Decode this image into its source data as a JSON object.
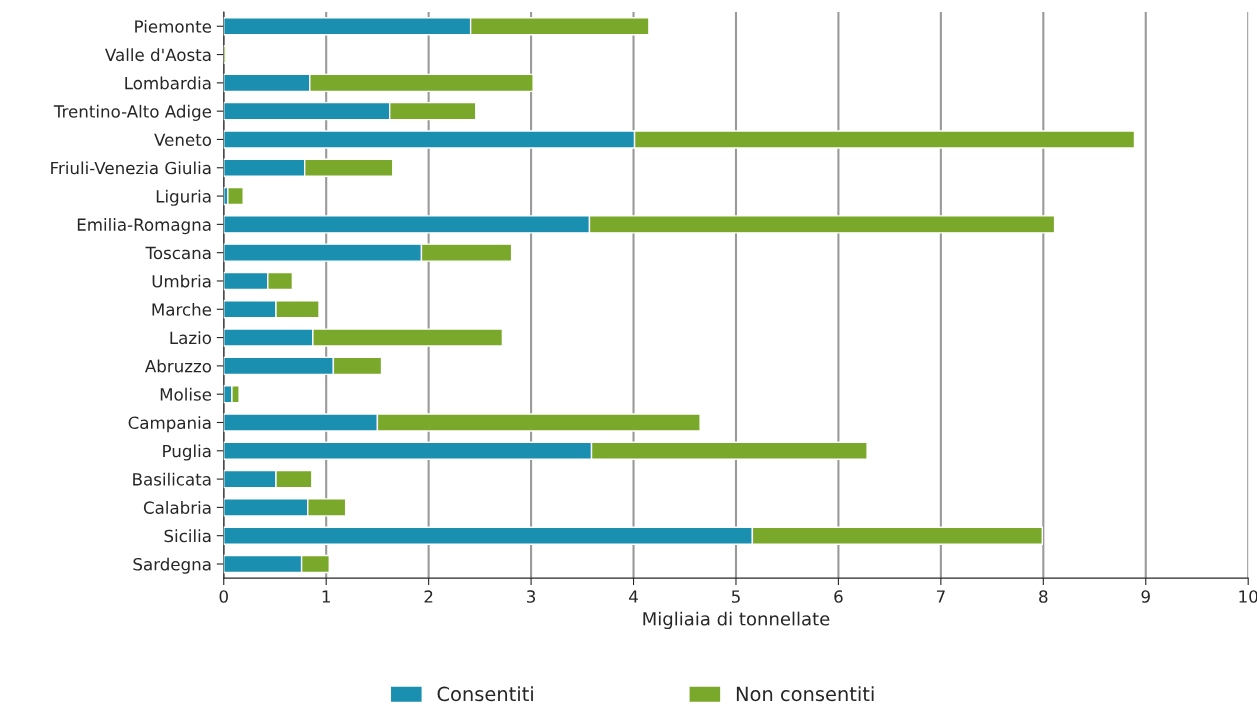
{
  "chart_data": {
    "type": "bar",
    "orientation": "horizontal",
    "stacked": true,
    "xlabel": "Migliaia di tonnellate",
    "categories": [
      "Piemonte",
      "Valle d'Aosta",
      "Lombardia",
      "Trentino-Alto Adige",
      "Veneto",
      "Friuli-Venezia Giulia",
      "Liguria",
      "Emilia-Romagna",
      "Toscana",
      "Umbria",
      "Marche",
      "Lazio",
      "Abruzzo",
      "Molise",
      "Campania",
      "Puglia",
      "Basilicata",
      "Calabria",
      "Sicilia",
      "Sardegna"
    ],
    "series": [
      {
        "name": "Consentiti",
        "color": "#1a8fb0",
        "values": [
          2.41,
          null,
          0.84,
          1.62,
          4.01,
          0.79,
          0.04,
          3.57,
          1.93,
          0.43,
          0.51,
          0.87,
          1.07,
          0.08,
          1.5,
          3.59,
          0.51,
          0.82,
          5.16,
          0.76
        ]
      },
      {
        "name": "Non consentiti",
        "color": "#7aa82a",
        "values": [
          1.74,
          0.02,
          2.18,
          0.84,
          4.88,
          0.86,
          0.15,
          4.54,
          0.88,
          0.24,
          0.42,
          1.85,
          0.47,
          0.07,
          3.15,
          2.69,
          0.35,
          0.37,
          2.83,
          0.27
        ]
      }
    ],
    "xlim": [
      0,
      10
    ],
    "xticks": [
      0,
      1,
      2,
      3,
      4,
      5,
      6,
      7,
      8,
      9,
      10
    ],
    "grid": "x",
    "legend": "bottom"
  }
}
